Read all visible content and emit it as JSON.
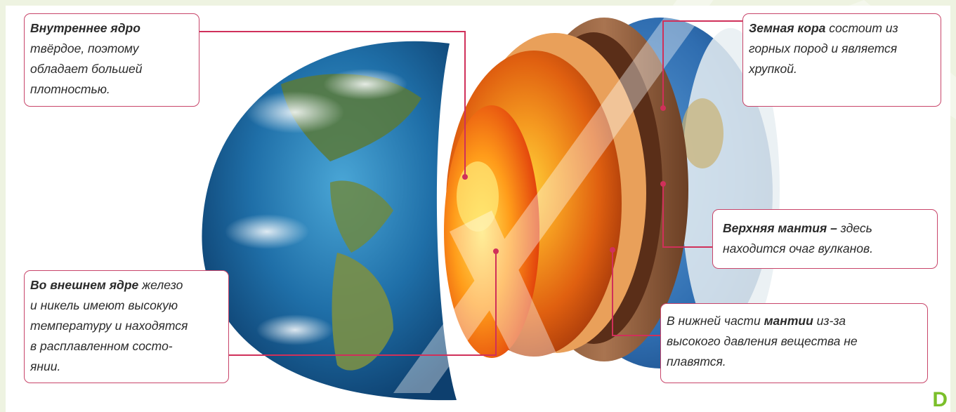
{
  "callouts": {
    "inner_core": {
      "bold": "Внутреннее ядро",
      "lines": [
        "твёрдое, поэтому",
        "обладает большей",
        "плотностью."
      ]
    },
    "outer_core": {
      "bold": "Во внешнем ядре",
      "first_rest": " железо",
      "lines": [
        "и никель имеют высокую",
        "температуру и находятся",
        "в расплавленном состо-",
        "янии."
      ]
    },
    "crust": {
      "bold": "Земная кора",
      "first_rest": " состоит из",
      "lines": [
        "горных пород и является",
        "хрупкой."
      ]
    },
    "upper_mantle": {
      "bold": "Верхняя мантия –",
      "first_rest": " здесь",
      "lines": [
        "находится очаг вулканов."
      ]
    },
    "lower_mantle": {
      "line1": "В нижней части ",
      "bold": "мантии",
      "first_rest": " из-за",
      "lines": [
        "высокого давления вещества не",
        "плавятся."
      ]
    }
  },
  "corner_letter": "D",
  "colors": {
    "callout_border": "#c8456a",
    "leader_line": "#d0305a",
    "frame": "#eef3e1",
    "corner_letter": "#7bbf2a"
  }
}
